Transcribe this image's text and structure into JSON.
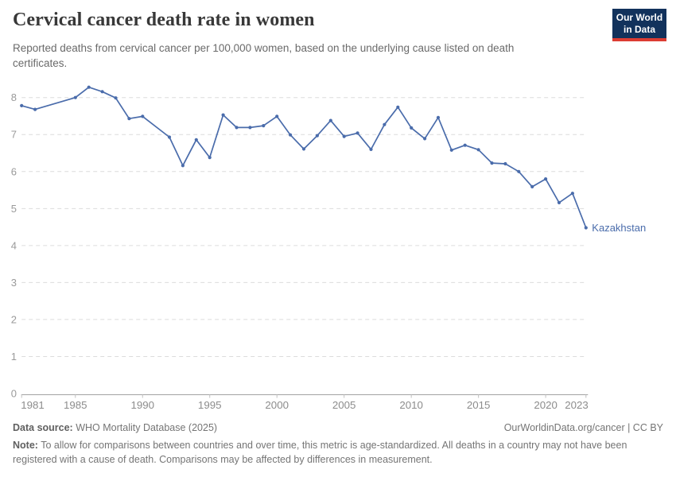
{
  "header": {
    "title": "Cervical cancer death rate in women",
    "subtitle": "Reported deaths from cervical cancer per 100,000 women, based on the underlying cause listed on death certificates.",
    "logo": {
      "line1": "Our World",
      "line2": "in Data",
      "bg_color": "#12325c",
      "accent_color": "#dc3d33"
    }
  },
  "chart_data": {
    "type": "line",
    "title": "Cervical cancer death rate in women",
    "xlabel": "",
    "ylabel": "",
    "xlim": [
      1981,
      2023
    ],
    "ylim": [
      0,
      8.5
    ],
    "yticks": [
      0,
      1,
      2,
      3,
      4,
      5,
      6,
      7,
      8
    ],
    "xticks": [
      1981,
      1985,
      1990,
      1995,
      2000,
      2005,
      2010,
      2015,
      2020,
      2023
    ],
    "grid": "horizontal-dashed",
    "legend_position": "end-of-line-label",
    "colors": {
      "line": "#4a6cab",
      "grid": "#dcdcdc",
      "axis": "#a3a3a3",
      "tick": "#c2c2c2",
      "y_label": "#9a9a9a",
      "x_label": "#8c8c8c"
    },
    "series": [
      {
        "name": "Kazakhstan",
        "points": [
          [
            1981,
            7.78
          ],
          [
            1982,
            7.68
          ],
          [
            1985,
            8.0
          ],
          [
            1986,
            8.28
          ],
          [
            1987,
            8.16
          ],
          [
            1988,
            7.99
          ],
          [
            1989,
            7.43
          ],
          [
            1990,
            7.49
          ],
          [
            1992,
            6.93
          ],
          [
            1993,
            6.16
          ],
          [
            1994,
            6.86
          ],
          [
            1995,
            6.38
          ],
          [
            1996,
            7.53
          ],
          [
            1997,
            7.19
          ],
          [
            1998,
            7.19
          ],
          [
            1999,
            7.24
          ],
          [
            2000,
            7.49
          ],
          [
            2001,
            6.99
          ],
          [
            2002,
            6.61
          ],
          [
            2003,
            6.97
          ],
          [
            2004,
            7.38
          ],
          [
            2005,
            6.95
          ],
          [
            2006,
            7.04
          ],
          [
            2007,
            6.6
          ],
          [
            2008,
            7.27
          ],
          [
            2009,
            7.74
          ],
          [
            2010,
            7.18
          ],
          [
            2011,
            6.89
          ],
          [
            2012,
            7.46
          ],
          [
            2013,
            6.58
          ],
          [
            2014,
            6.71
          ],
          [
            2015,
            6.59
          ],
          [
            2016,
            6.23
          ],
          [
            2017,
            6.21
          ],
          [
            2018,
            6.0
          ],
          [
            2019,
            5.59
          ],
          [
            2020,
            5.8
          ],
          [
            2021,
            5.16
          ],
          [
            2022,
            5.41
          ],
          [
            2023,
            4.48
          ]
        ]
      }
    ]
  },
  "footer": {
    "source_label": "Data source:",
    "source_value": "WHO Mortality Database (2025)",
    "rights": "OurWorldinData.org/cancer | CC BY",
    "note_label": "Note:",
    "note_value": "To allow for comparisons between countries and over time, this metric is age-standardized. All deaths in a country may not have been registered with a cause of death. Comparisons may be affected by differences in measurement."
  }
}
